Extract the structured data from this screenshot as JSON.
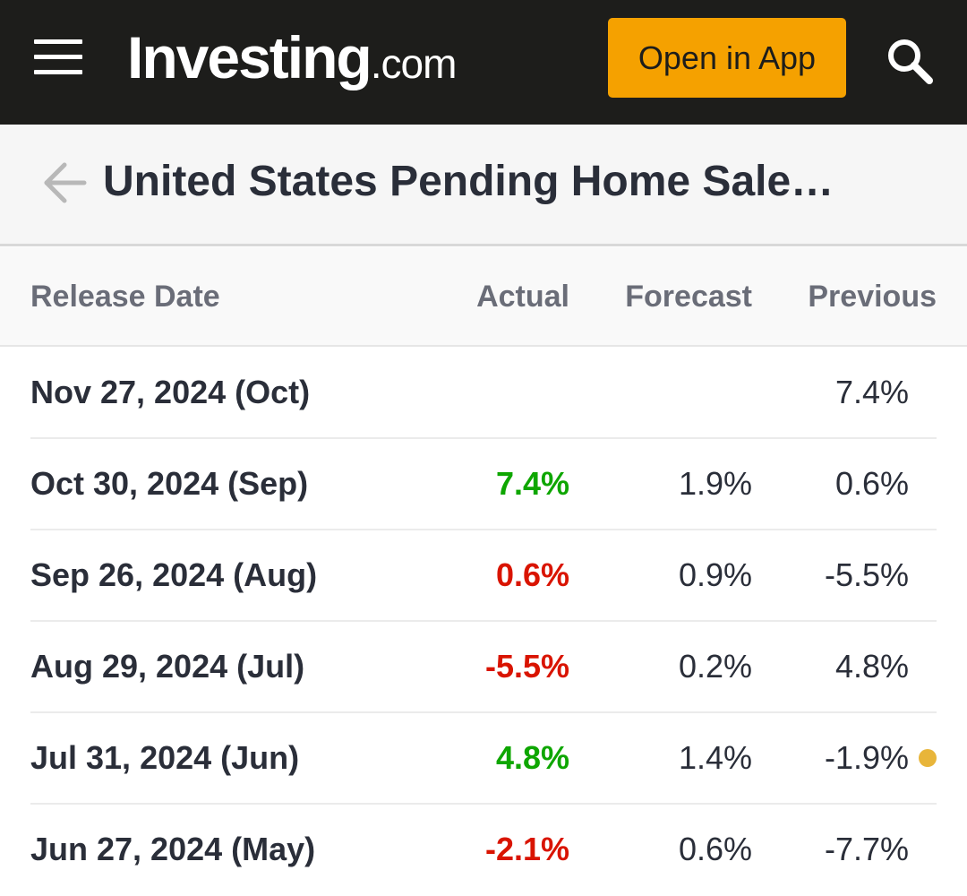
{
  "header": {
    "logo_main": "Investing",
    "logo_suffix": ".com",
    "open_app_label": "Open in App"
  },
  "page": {
    "title": "United States Pending Home Sale…"
  },
  "colors": {
    "header_bg": "#1d1d1b",
    "accent": "#f5a100",
    "positive": "#0ea600",
    "negative": "#d91400",
    "revision_dot": "#e8b53a"
  },
  "icons": [
    "hamburger-menu-icon",
    "search-icon",
    "back-arrow-icon",
    "revised-dot-icon"
  ],
  "table": {
    "columns": {
      "date": "Release Date",
      "actual": "Actual",
      "forecast": "Forecast",
      "previous": "Previous"
    },
    "rows": [
      {
        "date": "Nov 27, 2024 (Oct)",
        "actual": "",
        "actual_trend": "none",
        "forecast": "",
        "previous": "7.4%",
        "previous_revised": false
      },
      {
        "date": "Oct 30, 2024 (Sep)",
        "actual": "7.4%",
        "actual_trend": "positive",
        "forecast": "1.9%",
        "previous": "0.6%",
        "previous_revised": false
      },
      {
        "date": "Sep 26, 2024 (Aug)",
        "actual": "0.6%",
        "actual_trend": "negative",
        "forecast": "0.9%",
        "previous": "-5.5%",
        "previous_revised": false
      },
      {
        "date": "Aug 29, 2024 (Jul)",
        "actual": "-5.5%",
        "actual_trend": "negative",
        "forecast": "0.2%",
        "previous": "4.8%",
        "previous_revised": false
      },
      {
        "date": "Jul 31, 2024 (Jun)",
        "actual": "4.8%",
        "actual_trend": "positive",
        "forecast": "1.4%",
        "previous": "-1.9%",
        "previous_revised": true
      },
      {
        "date": "Jun 27, 2024 (May)",
        "actual": "-2.1%",
        "actual_trend": "negative",
        "forecast": "0.6%",
        "previous": "-7.7%",
        "previous_revised": false
      }
    ]
  }
}
